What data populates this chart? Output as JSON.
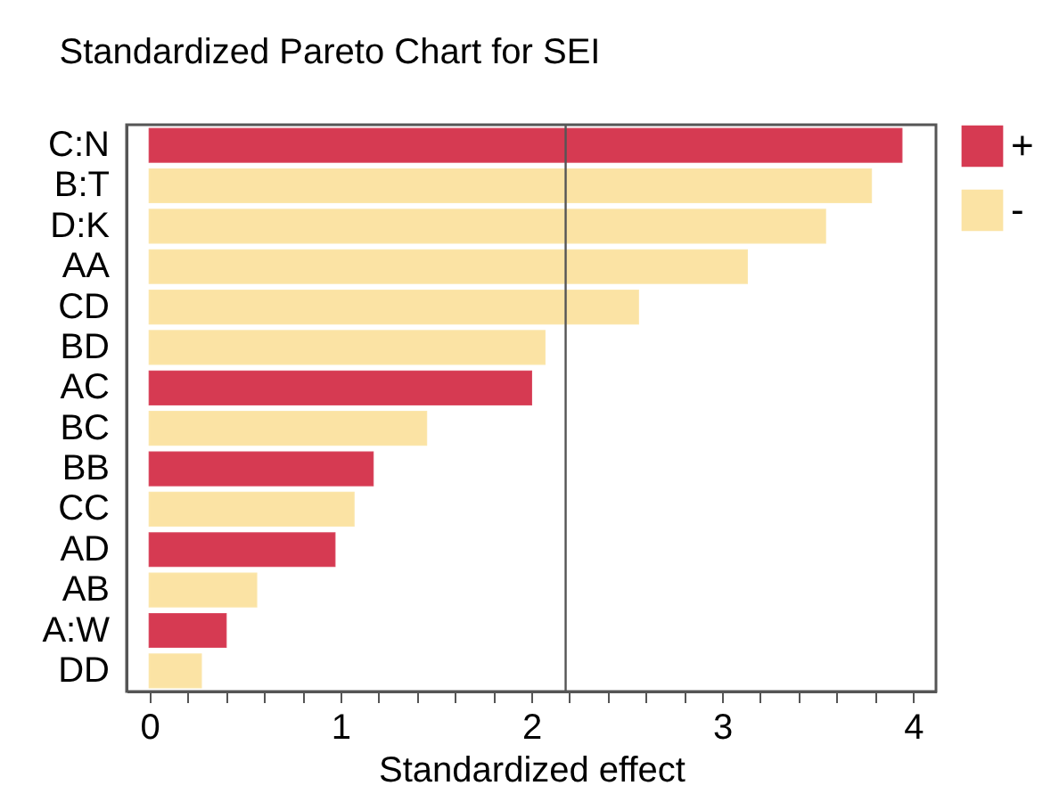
{
  "chart_data": {
    "type": "bar",
    "orientation": "horizontal",
    "title": "Standardized Pareto Chart for SEI",
    "xlabel": "Standardized effect",
    "categories": [
      "C:N",
      "B:T",
      "D:K",
      "AA",
      "CD",
      "BD",
      "AC",
      "BC",
      "BB",
      "CC",
      "AD",
      "AB",
      "A:W",
      "DD"
    ],
    "series": [
      {
        "name": "+",
        "color": "#d63a52",
        "values": [
          3.94,
          null,
          null,
          null,
          null,
          null,
          2.0,
          null,
          1.17,
          null,
          0.97,
          null,
          0.4,
          null
        ]
      },
      {
        "name": "-",
        "color": "#fbe3a4",
        "values": [
          null,
          3.78,
          3.54,
          3.13,
          2.56,
          2.07,
          null,
          1.45,
          null,
          1.07,
          null,
          0.56,
          null,
          0.27
        ]
      }
    ],
    "xlim": [
      -0.12,
      4.12
    ],
    "xticks": [
      0,
      {
        "value": 0.2,
        "label": null
      },
      {
        "value": 0.4,
        "label": null
      },
      {
        "value": 0.6,
        "label": null
      },
      {
        "value": 0.8,
        "label": null
      },
      1,
      {
        "value": 1.2,
        "label": null
      },
      {
        "value": 1.4,
        "label": null
      },
      {
        "value": 1.6,
        "label": null
      },
      {
        "value": 1.8,
        "label": null
      },
      2,
      {
        "value": 2.2,
        "label": null
      },
      {
        "value": 2.4,
        "label": null
      },
      {
        "value": 2.6,
        "label": null
      },
      {
        "value": 2.8,
        "label": null
      },
      3,
      {
        "value": 3.2,
        "label": null
      },
      {
        "value": 3.4,
        "label": null
      },
      {
        "value": 3.6,
        "label": null
      },
      {
        "value": 3.8,
        "label": null
      },
      4
    ],
    "ref_lines": [
      {
        "axis": "x",
        "value": 2.18,
        "color": "#555555"
      }
    ],
    "legend": "right",
    "grid": false
  }
}
